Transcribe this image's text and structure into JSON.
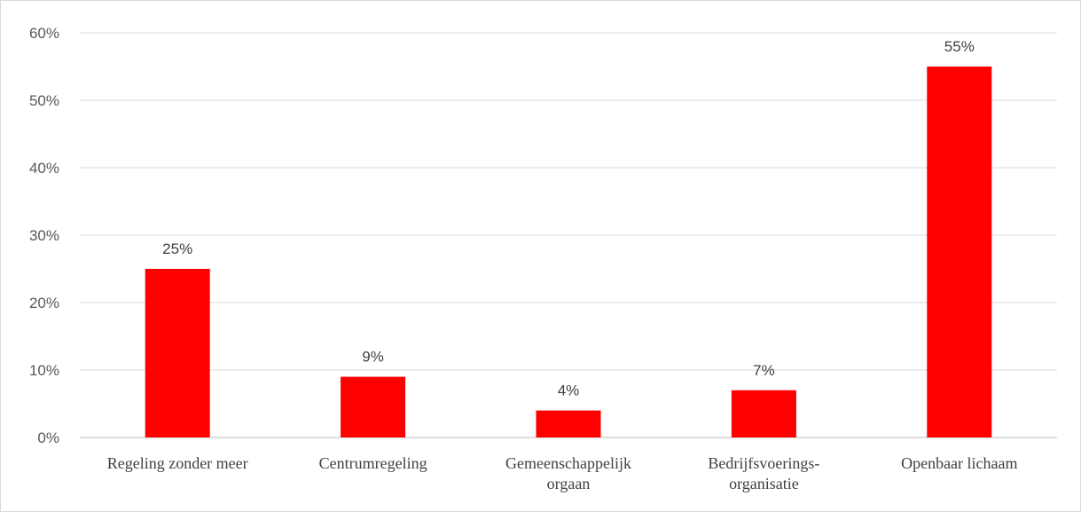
{
  "chart_data": {
    "type": "bar",
    "categories": [
      [
        "Regeling zonder meer"
      ],
      [
        "Centrumregeling"
      ],
      [
        "Gemeenschappelijk",
        "orgaan"
      ],
      [
        "Bedrijfsvoerings-",
        "organisatie"
      ],
      [
        "Openbaar lichaam"
      ]
    ],
    "values": [
      25,
      9,
      4,
      7,
      55
    ],
    "data_labels": [
      "25%",
      "9%",
      "4%",
      "7%",
      "55%"
    ],
    "y_ticks": [
      0,
      10,
      20,
      30,
      40,
      50,
      60
    ],
    "y_tick_labels": [
      "0%",
      "10%",
      "20%",
      "30%",
      "40%",
      "50%",
      "60%"
    ],
    "ylim": [
      0,
      60
    ],
    "title": "",
    "xlabel": "",
    "ylabel": "",
    "grid": true,
    "legend": "none",
    "bar_color": "#ff0000"
  }
}
